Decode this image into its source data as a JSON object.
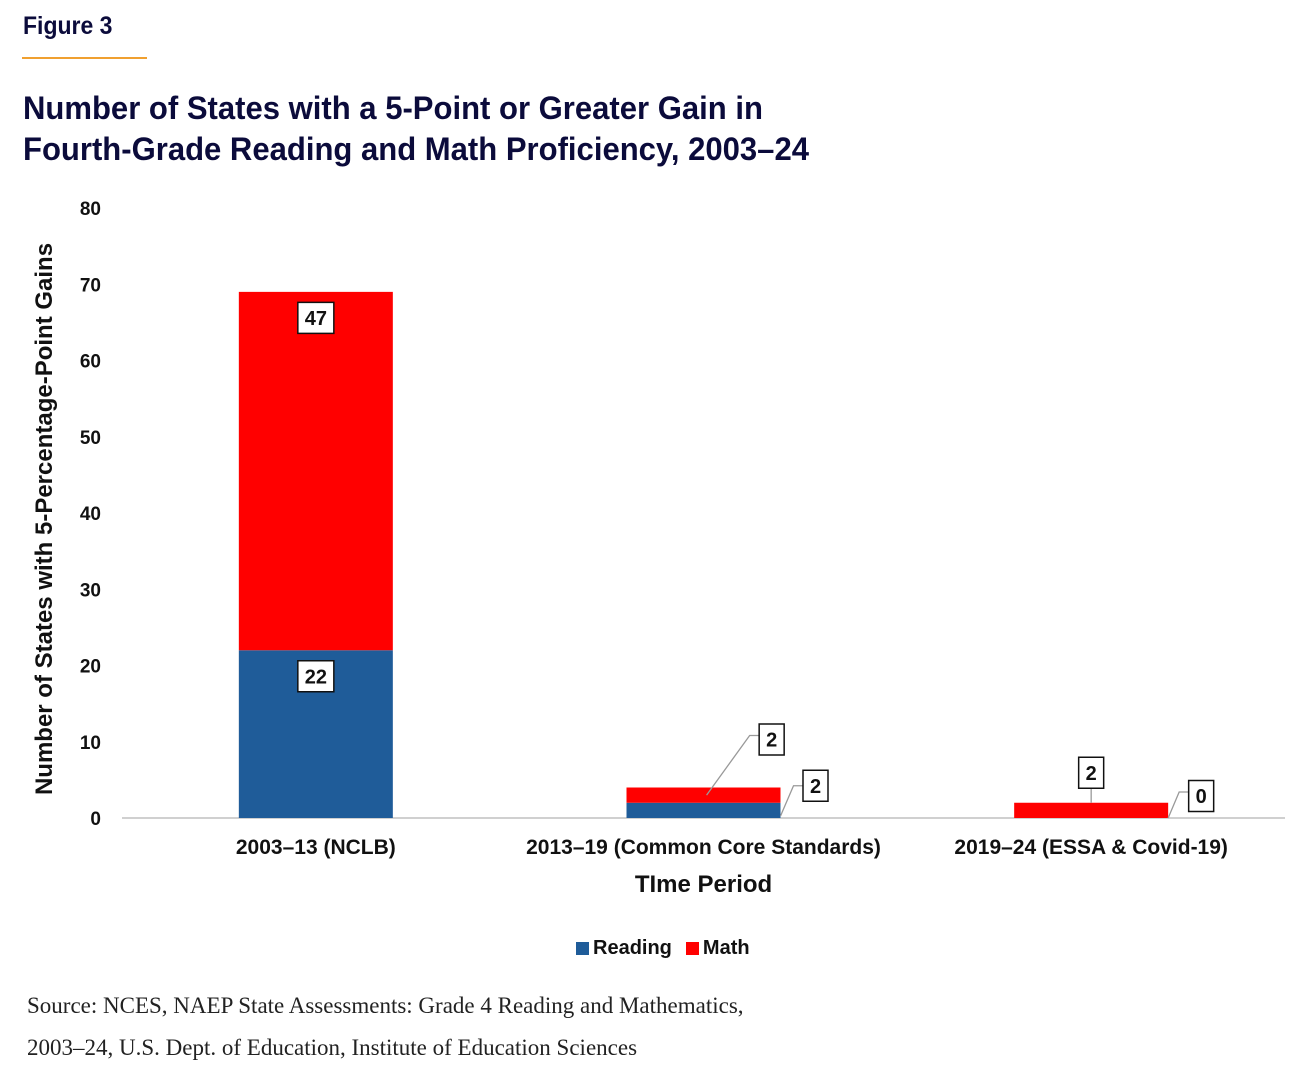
{
  "figure_label": "Figure 3",
  "colors": {
    "accent_rule": "#f0a030",
    "title": "#0b0b3b",
    "reading": "#1f5c99",
    "math": "#ff0000",
    "baseline": "#d0d0d0"
  },
  "chart_data": {
    "type": "bar",
    "stacked": true,
    "title": "Number of States with a 5-Point or Greater Gain in Fourth-Grade Reading and Math Proficiency, 2003–24",
    "title_lines": [
      "Number of States with a 5-Point or Greater Gain in",
      "Fourth-Grade Reading and Math Proficiency, 2003–24"
    ],
    "xlabel": "TIme Period",
    "ylabel": "Number of States with 5-Percentage-Point Gains",
    "ylim": [
      0,
      80
    ],
    "yticks": [
      0,
      10,
      20,
      30,
      40,
      50,
      60,
      70,
      80
    ],
    "grid": false,
    "categories": [
      "2003–13 (NCLB)",
      "2013–19 (Common Core Standards)",
      "2019–24 (ESSA & Covid-19)"
    ],
    "series": [
      {
        "name": "Reading",
        "color": "#1f5c99",
        "values": [
          22,
          2,
          0
        ],
        "labels": [
          "22",
          "2",
          "0"
        ]
      },
      {
        "name": "Math",
        "color": "#ff0000",
        "values": [
          47,
          2,
          2
        ],
        "labels": [
          "47",
          "2",
          "2"
        ]
      }
    ],
    "legend": {
      "position": "bottom",
      "entries": [
        "Reading",
        "Math"
      ]
    }
  },
  "source_lines": [
    "Source: NCES, NAEP State Assessments: Grade 4 Reading and Mathematics,",
    "2003–24, U.S. Dept. of Education, Institute of Education Sciences"
  ]
}
